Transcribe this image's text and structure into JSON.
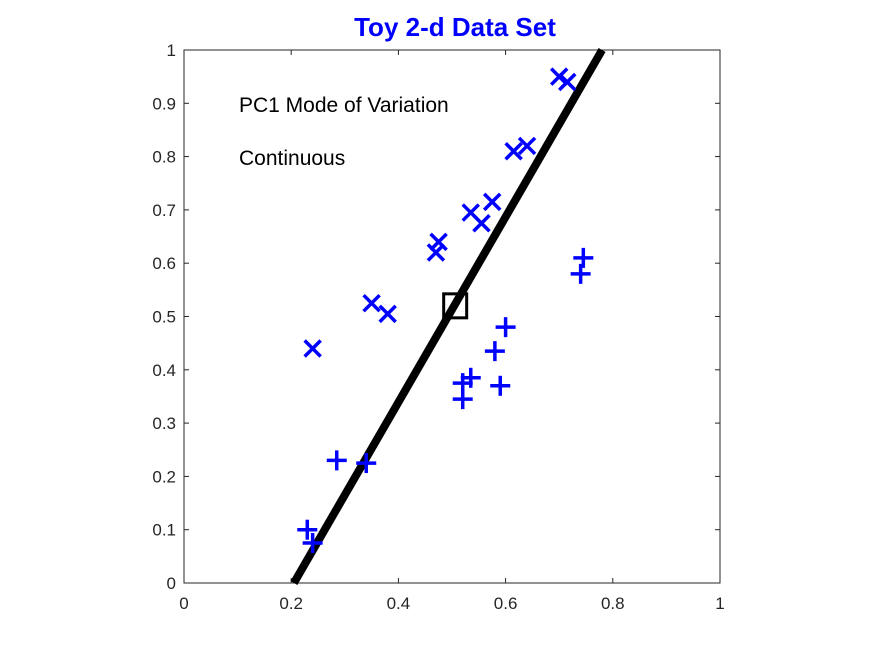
{
  "chart_data": {
    "type": "scatter",
    "title": "Toy 2-d Data Set",
    "xlabel": "",
    "ylabel": "",
    "xlim": [
      0,
      1
    ],
    "ylim": [
      0,
      1
    ],
    "xticks": [
      "0",
      "0.2",
      "0.4",
      "0.6",
      "0.8",
      "1"
    ],
    "xtick_values": [
      0,
      0.2,
      0.4,
      0.6,
      0.8,
      1
    ],
    "yticks": [
      "0",
      "0.1",
      "0.2",
      "0.3",
      "0.4",
      "0.5",
      "0.6",
      "0.7",
      "0.8",
      "0.9",
      "1"
    ],
    "ytick_values": [
      0,
      0.1,
      0.2,
      0.3,
      0.4,
      0.5,
      0.6,
      0.7,
      0.8,
      0.9,
      1
    ],
    "grid": false,
    "annotations": [
      "PC1 Mode of Variation",
      "Continuous"
    ],
    "series": [
      {
        "marker": "x",
        "points": [
          {
            "x": 0.24,
            "y": 0.44
          },
          {
            "x": 0.35,
            "y": 0.525
          },
          {
            "x": 0.38,
            "y": 0.505
          },
          {
            "x": 0.47,
            "y": 0.62
          },
          {
            "x": 0.475,
            "y": 0.64
          },
          {
            "x": 0.535,
            "y": 0.695
          },
          {
            "x": 0.555,
            "y": 0.675
          },
          {
            "x": 0.575,
            "y": 0.715
          },
          {
            "x": 0.615,
            "y": 0.81
          },
          {
            "x": 0.64,
            "y": 0.82
          },
          {
            "x": 0.7,
            "y": 0.95
          },
          {
            "x": 0.715,
            "y": 0.94
          }
        ]
      },
      {
        "marker": "+",
        "points": [
          {
            "x": 0.23,
            "y": 0.1
          },
          {
            "x": 0.24,
            "y": 0.075
          },
          {
            "x": 0.285,
            "y": 0.23
          },
          {
            "x": 0.34,
            "y": 0.225
          },
          {
            "x": 0.52,
            "y": 0.345
          },
          {
            "x": 0.52,
            "y": 0.375
          },
          {
            "x": 0.535,
            "y": 0.385
          },
          {
            "x": 0.58,
            "y": 0.435
          },
          {
            "x": 0.59,
            "y": 0.37
          },
          {
            "x": 0.6,
            "y": 0.48
          },
          {
            "x": 0.74,
            "y": 0.58
          },
          {
            "x": 0.745,
            "y": 0.61
          }
        ]
      }
    ],
    "line": [
      {
        "x": 0.205,
        "y": 0.0
      },
      {
        "x": 0.78,
        "y": 1.0
      }
    ],
    "center_marker": {
      "x": 0.505,
      "y": 0.52
    },
    "colors": {
      "points": "#0000ff",
      "title": "#0000ff",
      "line": "#000000",
      "axis": "#262626"
    }
  }
}
